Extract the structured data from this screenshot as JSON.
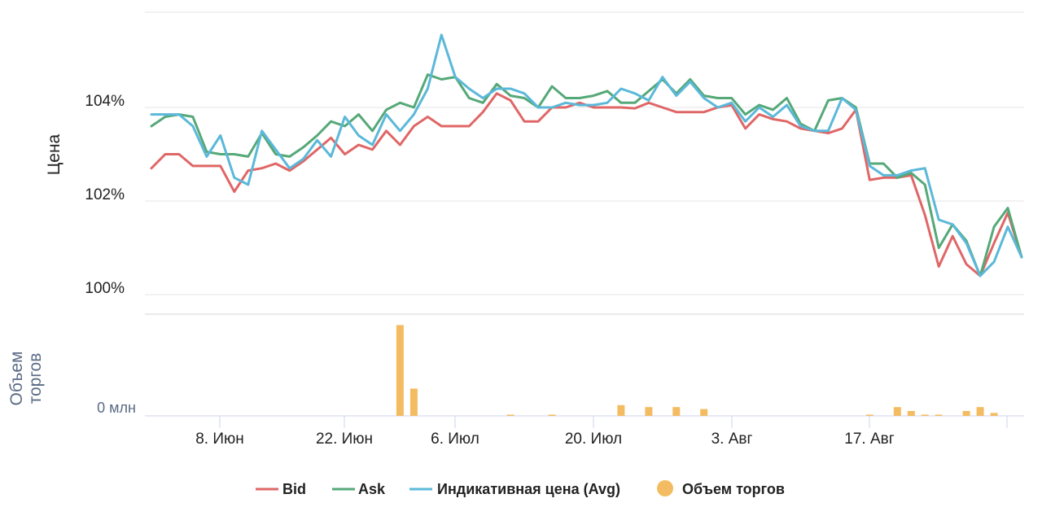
{
  "chart_data": [
    {
      "type": "line",
      "ylabel": "Цена",
      "y_ticks": [
        "100%",
        "102%",
        "104%"
      ],
      "ylim": [
        99.6,
        106.0
      ],
      "x_ticks": [
        "8. Июн",
        "22. Июн",
        "6. Июл",
        "20. Июл",
        "3. Авг",
        "17. Авг"
      ],
      "grid": true,
      "series": [
        {
          "name": "Bid",
          "color": "#e06666",
          "values": [
            102.7,
            103.0,
            103.0,
            102.75,
            102.75,
            102.75,
            102.2,
            102.65,
            102.7,
            102.8,
            102.65,
            102.85,
            103.1,
            103.35,
            103.0,
            103.2,
            103.1,
            103.5,
            103.2,
            103.6,
            103.8,
            103.6,
            103.6,
            103.6,
            103.9,
            104.3,
            104.15,
            103.7,
            103.7,
            104.0,
            104.0,
            104.1,
            104.0,
            104.0,
            104.0,
            103.98,
            104.1,
            104.0,
            103.9,
            103.9,
            103.9,
            104.0,
            104.05,
            103.55,
            103.85,
            103.75,
            103.7,
            103.55,
            103.5,
            103.45,
            103.55,
            103.95,
            102.45,
            102.5,
            102.5,
            102.55,
            101.7,
            100.6,
            101.25,
            100.65,
            100.4,
            101.1,
            101.75,
            100.8
          ]
        },
        {
          "name": "Ask",
          "color": "#55a878",
          "values": [
            103.6,
            103.8,
            103.85,
            103.8,
            103.05,
            103.0,
            103.0,
            102.95,
            103.45,
            103.0,
            102.95,
            103.15,
            103.4,
            103.7,
            103.6,
            103.85,
            103.5,
            103.95,
            104.1,
            104.0,
            104.7,
            104.6,
            104.65,
            104.2,
            104.1,
            104.5,
            104.25,
            104.2,
            104.0,
            104.45,
            104.2,
            104.2,
            104.25,
            104.35,
            104.1,
            104.1,
            104.35,
            104.6,
            104.3,
            104.6,
            104.25,
            104.2,
            104.2,
            103.85,
            104.05,
            103.95,
            104.2,
            103.65,
            103.5,
            104.15,
            104.2,
            104.0,
            102.8,
            102.8,
            102.5,
            102.6,
            102.35,
            101.0,
            101.5,
            101.15,
            100.4,
            101.45,
            101.85,
            100.8
          ]
        },
        {
          "name": "Индикативная цена (Avg)",
          "color": "#5bb8d9",
          "values": [
            103.85,
            103.85,
            103.85,
            103.6,
            102.95,
            103.4,
            102.5,
            102.35,
            103.5,
            103.1,
            102.7,
            102.9,
            103.3,
            102.95,
            103.8,
            103.4,
            103.2,
            103.85,
            103.5,
            103.85,
            104.4,
            105.55,
            104.65,
            104.4,
            104.2,
            104.4,
            104.4,
            104.3,
            104.0,
            104.0,
            104.1,
            104.05,
            104.05,
            104.1,
            104.4,
            104.3,
            104.15,
            104.65,
            104.25,
            104.55,
            104.2,
            104.0,
            104.1,
            103.7,
            104.0,
            103.8,
            104.05,
            103.6,
            103.5,
            103.5,
            104.2,
            103.95,
            102.75,
            102.55,
            102.55,
            102.65,
            102.7,
            101.6,
            101.5,
            101.1,
            100.4,
            100.7,
            101.45,
            100.8
          ]
        }
      ]
    },
    {
      "type": "bar",
      "ylabel": "Объем торгов",
      "y_ticks": [
        "0 млн"
      ],
      "ylim": [
        0,
        10
      ],
      "series": [
        {
          "name": "Объем торгов",
          "color": "#f3bc62",
          "points": [
            [
              18,
              9.3
            ],
            [
              19,
              2.8
            ],
            [
              26,
              0.1
            ],
            [
              29,
              0.1
            ],
            [
              34,
              1.1
            ],
            [
              36,
              0.9
            ],
            [
              38,
              0.9
            ],
            [
              40,
              0.7
            ],
            [
              52,
              0.1
            ],
            [
              54,
              0.9
            ],
            [
              55,
              0.5
            ],
            [
              56,
              0.1
            ],
            [
              57,
              0.1
            ],
            [
              59,
              0.5
            ],
            [
              60,
              0.9
            ],
            [
              61,
              0.3
            ]
          ]
        }
      ]
    }
  ],
  "legend": [
    {
      "label": "Bid",
      "color": "#e06666",
      "shape": "line"
    },
    {
      "label": "Ask",
      "color": "#55a878",
      "shape": "line"
    },
    {
      "label": "Индикативная цена (Avg)",
      "color": "#5bb8d9",
      "shape": "line"
    },
    {
      "label": "Объем торгов",
      "color": "#f3bc62",
      "shape": "circle"
    }
  ]
}
